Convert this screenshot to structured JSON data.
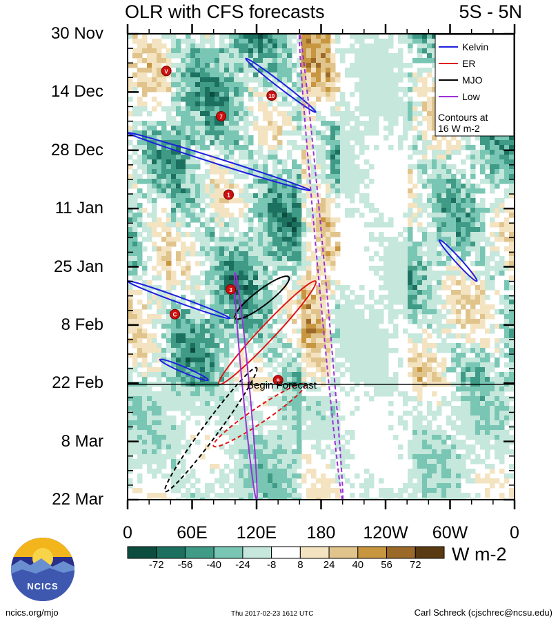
{
  "header": {
    "title": "OLR with CFS forecasts",
    "region": "5S - 5N"
  },
  "chart_data": {
    "type": "heatmap",
    "title": "OLR with CFS forecasts",
    "region": "5S - 5N",
    "x_axis": {
      "ticks": [
        "0",
        "60E",
        "120E",
        "180",
        "120W",
        "60W",
        "0"
      ],
      "tick_values_deg_east": [
        0,
        60,
        120,
        180,
        240,
        300,
        360
      ]
    },
    "y_axis": {
      "ticks": [
        "30 Nov",
        "14 Dec",
        "28 Dec",
        "11 Jan",
        "25 Jan",
        "8 Feb",
        "22 Feb",
        "8 Mar",
        "22 Mar"
      ],
      "direction": "time increases downward"
    },
    "forecast_start": {
      "date": "22 Feb",
      "label": "Begin Forecast"
    },
    "legend": {
      "placement": "top-right",
      "entries": [
        {
          "name": "Kelvin",
          "color": "#1f1fe0"
        },
        {
          "name": "ER",
          "color": "#e01515"
        },
        {
          "name": "MJO",
          "color": "#000000"
        },
        {
          "name": "Low",
          "color": "#9b30d8"
        }
      ],
      "note": [
        "Contours at",
        "16 W m-2"
      ]
    },
    "colorbar": {
      "unit": "W m-2",
      "labels": [
        "-72",
        "-56",
        "-40",
        "-24",
        "-8",
        "8",
        "24",
        "40",
        "56",
        "72"
      ],
      "colors": [
        "#0d4d3f",
        "#1c7060",
        "#3f9a86",
        "#78c6b3",
        "#c5e7dc",
        "#ffffff",
        "#f4e3c0",
        "#e0c48c",
        "#c8963f",
        "#9c6a28",
        "#5a3a12"
      ]
    },
    "wave_contours": [
      {
        "type": "Kelvin",
        "period": "observed",
        "lon_start": 0,
        "lon_end": 170,
        "date_start": "23 Dec",
        "date_end": "6 Jan"
      },
      {
        "type": "Kelvin",
        "period": "observed",
        "lon_start": 110,
        "lon_end": 175,
        "date_start": "5 Dec",
        "date_end": "18 Dec"
      },
      {
        "type": "Kelvin",
        "period": "observed",
        "lon_start": 0,
        "lon_end": 95,
        "date_start": "28 Jan",
        "date_end": "6 Feb"
      },
      {
        "type": "Kelvin",
        "period": "observed",
        "lon_start": 30,
        "lon_end": 75,
        "date_start": "16 Feb",
        "date_end": "21 Feb"
      },
      {
        "type": "Kelvin",
        "period": "observed",
        "lon_start": 290,
        "lon_end": 325,
        "date_start": "18 Jan",
        "date_end": "28 Jan"
      },
      {
        "type": "MJO",
        "period": "observed",
        "lon_start": 100,
        "lon_end": 150,
        "date_start": "27 Jan",
        "date_end": "6 Feb"
      },
      {
        "type": "MJO",
        "period": "forecast",
        "lon_start": 35,
        "lon_end": 120,
        "date_start": "18 Feb",
        "date_end": "20 Mar"
      },
      {
        "type": "ER",
        "period": "observed",
        "lon_start": 85,
        "lon_end": 175,
        "date_start": "28 Jan",
        "date_end": "22 Feb"
      },
      {
        "type": "ER",
        "period": "forecast",
        "lon_start": 80,
        "lon_end": 165,
        "date_start": "22 Feb",
        "date_end": "9 Mar"
      },
      {
        "type": "Low",
        "period": "observed",
        "lon_start": 100,
        "lon_end": 120,
        "date_start": "26 Jan",
        "date_end": "22 Mar"
      },
      {
        "type": "Low",
        "period": "forecast",
        "lon_start": 160,
        "lon_end": 200,
        "date_start": "30 Nov",
        "date_end": "22 Mar"
      }
    ],
    "storm_markers": [
      "V",
      "7",
      "10",
      "1",
      "3",
      "C",
      "9"
    ]
  },
  "footer": {
    "site": "ncics.org/mjo",
    "timestamp": "Thu 2017-02-23 1612 UTC",
    "author": "Carl Schreck (cjschrec@ncsu.edu)",
    "logo_text": "NCICS"
  }
}
